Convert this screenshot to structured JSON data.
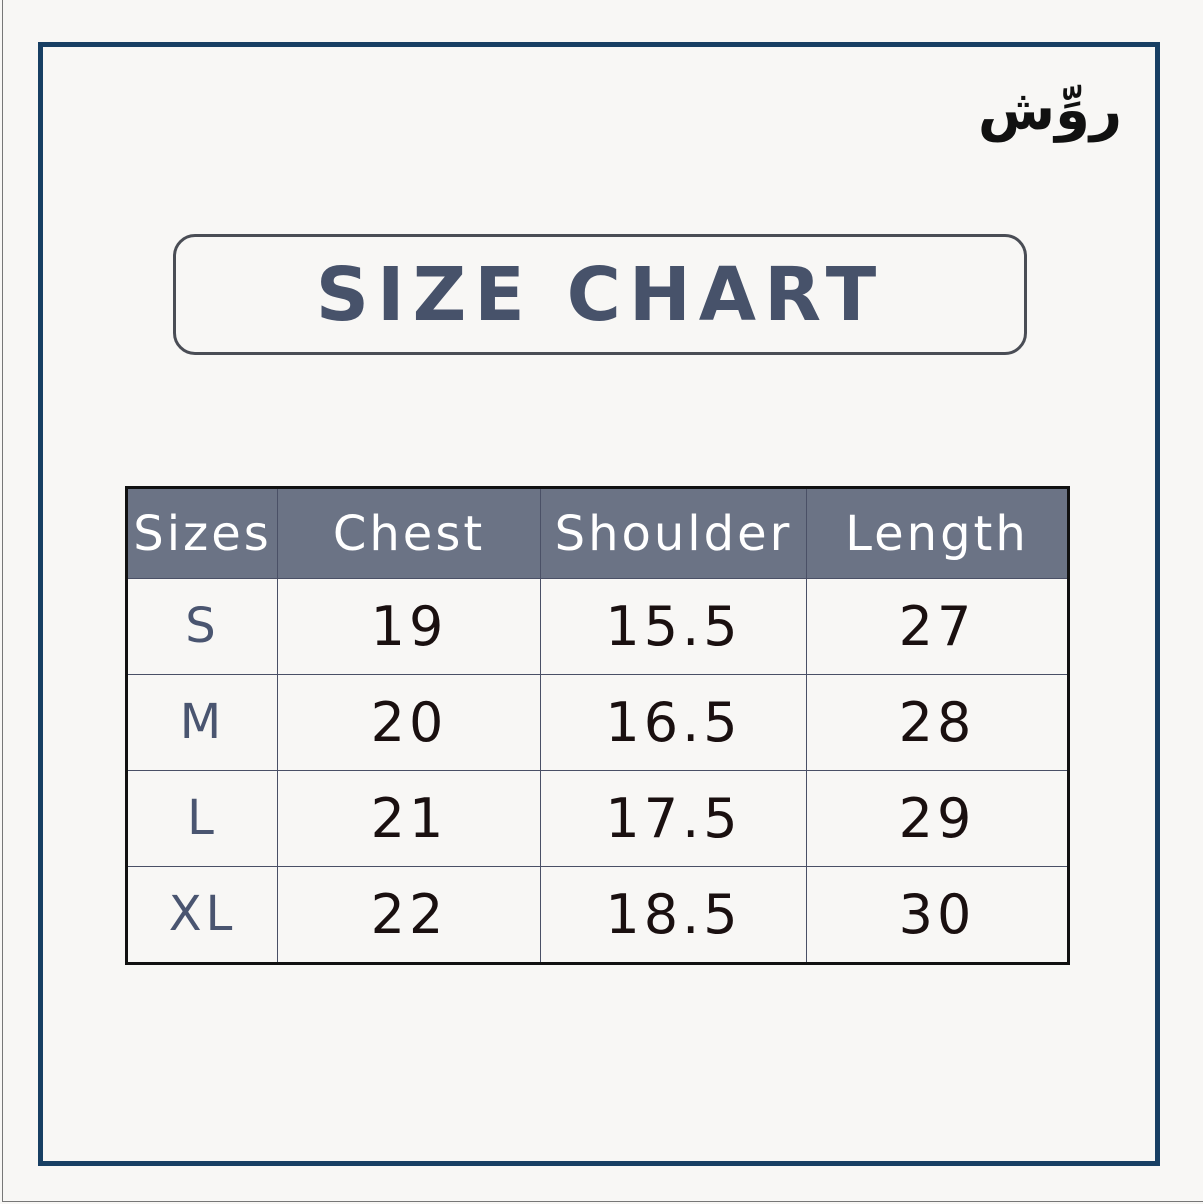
{
  "brand": {
    "logo_text": "روِّش"
  },
  "title": "SIZE CHART",
  "table": {
    "headers": [
      "Sizes",
      "Chest",
      "Shoulder",
      "Length"
    ],
    "rows": [
      [
        "S",
        "19",
        "15.5",
        "27"
      ],
      [
        "M",
        "20",
        "16.5",
        "28"
      ],
      [
        "L",
        "21",
        "17.5",
        "29"
      ],
      [
        "XL",
        "22",
        "18.5",
        "30"
      ]
    ]
  },
  "colors": {
    "frame": "#183f63",
    "header_bg": "#6b7385",
    "title": "#47526a"
  }
}
